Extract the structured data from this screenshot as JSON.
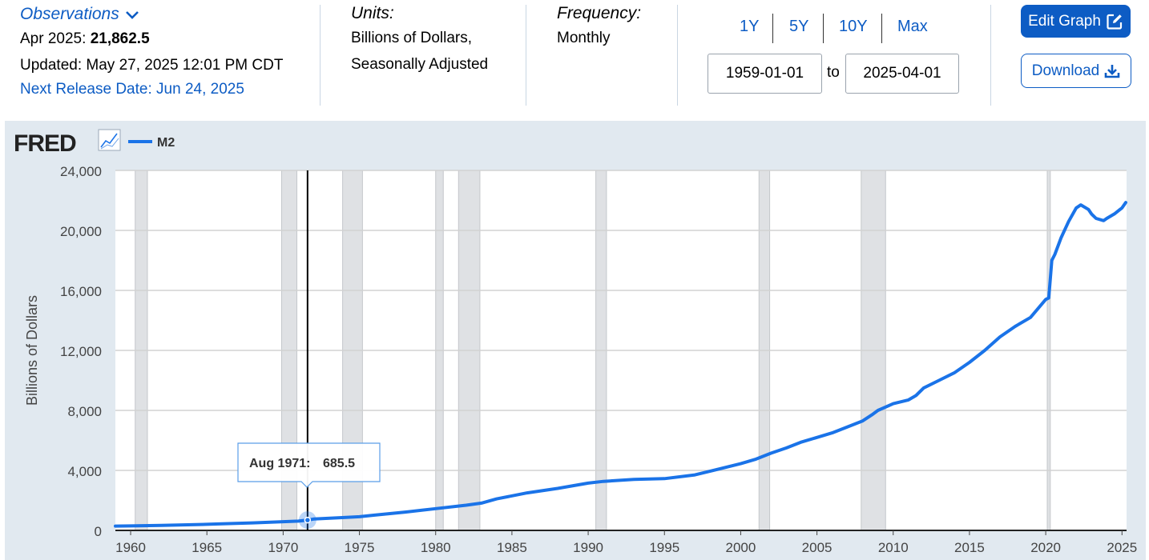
{
  "header": {
    "observations_label": "Observations",
    "obs_date": "Apr 2025:",
    "obs_value": "21,862.5",
    "updated": "Updated: May 27, 2025 12:01 PM CDT",
    "next_release": "Next Release Date: Jun 24, 2025",
    "units_label": "Units:",
    "units_line1": "Billions of Dollars,",
    "units_line2": "Seasonally Adjusted",
    "frequency_label": "Frequency:",
    "frequency_value": "Monthly",
    "ranges": [
      "1Y",
      "5Y",
      "10Y",
      "Max"
    ],
    "start_date": "1959-01-01",
    "to_label": "to",
    "end_date": "2025-04-01",
    "edit_label": "Edit Graph",
    "download_label": "Download",
    "accent": "#0d5cc4"
  },
  "chart": {
    "logo": "FRED",
    "series_name": "M2",
    "line_color": "#1a73e8",
    "tooltip_date": "Aug 1971:",
    "tooltip_value": "685.5"
  },
  "chart_data": {
    "type": "line",
    "title": "",
    "xlabel": "",
    "ylabel": "Billions of Dollars",
    "xlim": [
      1959.0,
      2025.3
    ],
    "ylim": [
      0,
      24000
    ],
    "yticks": [
      0,
      4000,
      8000,
      12000,
      16000,
      20000,
      24000
    ],
    "ytick_labels": [
      "0",
      "4,000",
      "8,000",
      "12,000",
      "16,000",
      "20,000",
      "24,000"
    ],
    "xticks": [
      1960,
      1965,
      1970,
      1975,
      1980,
      1985,
      1990,
      1995,
      2000,
      2005,
      2010,
      2015,
      2020,
      2025
    ],
    "xtick_labels": [
      "1960",
      "1965",
      "1970",
      "1975",
      "1980",
      "1985",
      "1990",
      "1995",
      "2000",
      "2005",
      "2010",
      "2015",
      "2020",
      "2025"
    ],
    "grid": true,
    "legend": "top-left",
    "recessions": [
      [
        1960.3,
        1961.1
      ],
      [
        1969.9,
        1970.9
      ],
      [
        1973.9,
        1975.2
      ],
      [
        1980.0,
        1980.5
      ],
      [
        1981.5,
        1982.9
      ],
      [
        1990.5,
        1991.2
      ],
      [
        2001.2,
        2001.9
      ],
      [
        2007.9,
        2009.5
      ],
      [
        2020.1,
        2020.3
      ]
    ],
    "highlight": {
      "x": 1971.6,
      "y": 685.5
    },
    "series": [
      {
        "name": "M2",
        "x": [
          1959.0,
          1960.0,
          1962.0,
          1964.0,
          1966.0,
          1968.0,
          1970.0,
          1971.0,
          1971.6,
          1972.0,
          1974.0,
          1975.0,
          1976.0,
          1978.0,
          1980.0,
          1982.0,
          1983.0,
          1984.0,
          1986.0,
          1988.0,
          1990.0,
          1991.0,
          1993.0,
          1995.0,
          1997.0,
          1998.0,
          2000.0,
          2001.0,
          2002.0,
          2003.0,
          2004.0,
          2005.0,
          2006.0,
          2007.0,
          2008.0,
          2008.6,
          2009.0,
          2010.0,
          2011.0,
          2011.5,
          2012.0,
          2013.0,
          2014.0,
          2015.0,
          2016.0,
          2017.0,
          2018.0,
          2019.0,
          2020.0,
          2020.2,
          2020.4,
          2020.6,
          2021.0,
          2021.5,
          2022.0,
          2022.3,
          2022.8,
          2023.0,
          2023.3,
          2023.8,
          2024.0,
          2024.5,
          2025.0,
          2025.25
        ],
        "values": [
          290,
          300,
          330,
          380,
          440,
          500,
          580,
          620,
          685.5,
          760,
          860,
          910,
          1020,
          1220,
          1450,
          1680,
          1820,
          2100,
          2500,
          2800,
          3150,
          3270,
          3400,
          3450,
          3700,
          3950,
          4450,
          4750,
          5150,
          5500,
          5900,
          6200,
          6500,
          6900,
          7300,
          7700,
          8000,
          8450,
          8700,
          9000,
          9500,
          10000,
          10500,
          11200,
          12000,
          12900,
          13600,
          14200,
          15400,
          15500,
          18000,
          18400,
          19500,
          20600,
          21500,
          21700,
          21400,
          21100,
          20800,
          20650,
          20800,
          21100,
          21500,
          21862.5
        ]
      }
    ]
  }
}
